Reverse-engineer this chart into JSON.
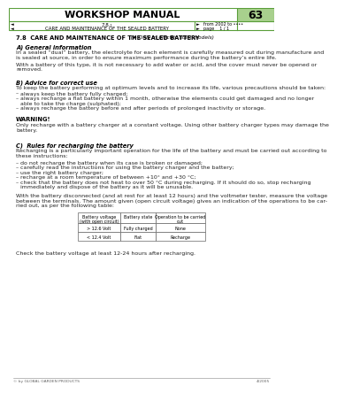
{
  "title": "WORKSHOP MANUAL",
  "section_number": "63",
  "subsection_line1": "7.8.₁",
  "subsection_line2": "CARE AND MAINTENANCE OF THE SEALED BATTERY",
  "from_year": "from 2002 to ••••",
  "page_info": "page    1 / 1",
  "header_green": "#5a9e3a",
  "header_light_green": "#a8d08d",
  "main_title_text": "7.8  CARE AND MAINTENANCE OF THE SEALED BATTERY",
  "main_title_suffix": "  (➤ Only in electric start models)",
  "section_A_header": "A) General information",
  "section_A_p1": "In a sealed “dual” battery, the electrolyte for each element is carefully measured out during manufacture and\nis sealed at source, in order to ensure maximum performance during the battery’s entire life.",
  "section_A_p2": "With a battery of this type, it is not necessary to add water or acid, and the cover must never be opened or\nremoved.",
  "section_B_header": "B) Advice for correct use",
  "section_B_intro": "To keep the battery performing at optimum levels and to increase its life, various precautions should be taken:",
  "section_B_bullets": [
    "always keep the battery fully charged;",
    "always recharge a flat battery within 1 month, otherwise the elements could get damaged and no longer\nable to take the charge (sulphated);",
    "always recharge the battery before and after periods of prolonged inactivity or storage."
  ],
  "warning_header": "WARNING!",
  "warning_text": "Only recharge with a battery charger at a constant voltage. Using other battery charger types may damage the\nbattery.",
  "section_C_header": "C)  Rules for recharging the battery",
  "section_C_intro": "Recharging is a particularly important operation for the life of the battery and must be carried out according to\nthese instructions:",
  "section_C_bullets": [
    "do not recharge the battery when its case is broken or damaged;",
    "carefully read the instructions for using the battery charger and the battery;",
    "use the right battery charger;",
    "recharge at a room temperature of between +10° and +30 °C;",
    "check that the battery does not heat to over 50 °C during recharging. If it should do so, stop recharging\nimmediately and dispose of the battery as it will be unusable."
  ],
  "post_C_text": "With the battery disconnected (and at rest for at least 12 hours) and the voltmeter tester, measure the voltage\nbetween the terminals. The amount given (open circuit voltage) gives an indication of the operations to be car-\nried out, as per the following table:",
  "table_col_headers": [
    "Battery voltage\n(with open circuit)",
    "Battery state",
    "Operation to be carried\nout"
  ],
  "table_rows": [
    [
      "> 12.6 Volt",
      "Fully charged",
      "None"
    ],
    [
      "< 12.4 Volt",
      "Flat",
      "Recharge"
    ]
  ],
  "check_text": "Check the battery voltage at least 12-24 hours after recharging.",
  "footer_left": "© by GLOBAL GARDEN PRODUCTS",
  "footer_right": "4/2005",
  "green": "#5a9e3a",
  "light_green": "#a8d08d",
  "text_color": "#222222",
  "bg_color": "#ffffff"
}
